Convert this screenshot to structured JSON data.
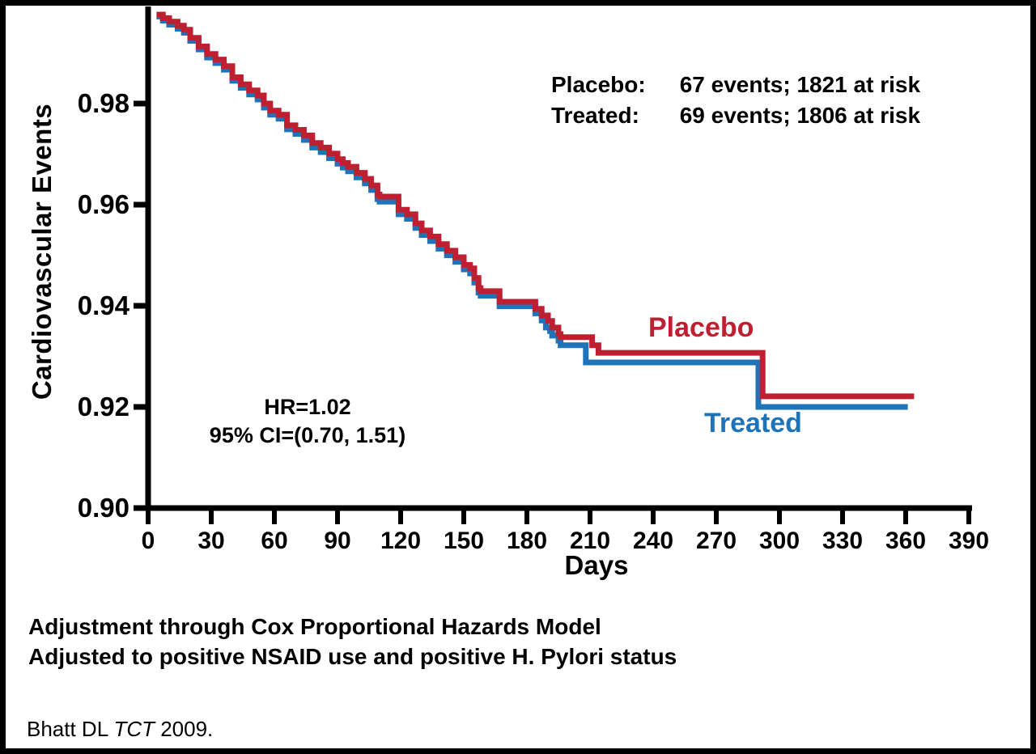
{
  "colors": {
    "placebo": "#BE2032",
    "treated": "#1E73B9",
    "axis": "#000000",
    "text": "#000000",
    "background": "#ffffff",
    "frame_border": "#000000"
  },
  "y_axis": {
    "title": "Cardiovascular Events"
  },
  "x_axis": {
    "title": "Days"
  },
  "legend": {
    "rows": [
      {
        "label": "Placebo:",
        "value": "67 events; 1821 at risk"
      },
      {
        "label": "Treated:",
        "value": "69 events; 1806 at risk"
      }
    ]
  },
  "annotation": {
    "line1": "HR=1.02",
    "line2": "95% CI=(0.70, 1.51)"
  },
  "curve_labels": {
    "placebo": "Placebo",
    "treated": "Treated"
  },
  "footer": {
    "line1": "Adjustment through Cox Proportional Hazards Model",
    "line2": "Adjusted to positive NSAID use and positive H. Pylori status"
  },
  "citation": {
    "prefix": "Bhatt DL ",
    "italic": "TCT",
    "suffix": " 2009."
  },
  "chart_data": {
    "type": "line",
    "subtype": "kaplan-meier-step",
    "title": "",
    "xlabel": "Days",
    "ylabel": "Cardiovascular Events",
    "xlim": [
      0,
      390
    ],
    "ylim": [
      0.9,
      1.0
    ],
    "x_ticks": [
      0,
      30,
      60,
      90,
      120,
      150,
      180,
      210,
      240,
      270,
      300,
      330,
      360,
      390
    ],
    "y_ticks": [
      0.98,
      0.96,
      0.94,
      0.92,
      0.9
    ],
    "grid": false,
    "legend_position": "top-right",
    "hazard_ratio": "1.02",
    "ci_95": "(0.70, 1.51)",
    "series": [
      {
        "name": "Placebo",
        "color": "#BE2032",
        "events": 67,
        "at_risk": 1821,
        "points": [
          [
            4,
            0.9976
          ],
          [
            7,
            0.9969
          ],
          [
            10,
            0.9962
          ],
          [
            14,
            0.9954
          ],
          [
            17,
            0.9946
          ],
          [
            20,
            0.993
          ],
          [
            24,
            0.9913
          ],
          [
            28,
            0.9898
          ],
          [
            32,
            0.9887
          ],
          [
            36,
            0.9874
          ],
          [
            40,
            0.9852
          ],
          [
            44,
            0.9838
          ],
          [
            48,
            0.9826
          ],
          [
            52,
            0.9816
          ],
          [
            55,
            0.98
          ],
          [
            58,
            0.9786
          ],
          [
            62,
            0.9778
          ],
          [
            66,
            0.9757
          ],
          [
            70,
            0.9748
          ],
          [
            74,
            0.9737
          ],
          [
            78,
            0.9722
          ],
          [
            82,
            0.9713
          ],
          [
            86,
            0.9701
          ],
          [
            90,
            0.969
          ],
          [
            95,
            0.9675
          ],
          [
            99,
            0.9663
          ],
          [
            103,
            0.9651
          ],
          [
            106,
            0.9638
          ],
          [
            109,
            0.962
          ],
          [
            110,
            0.9616
          ],
          [
            117,
            0.9616
          ],
          [
            119,
            0.959
          ],
          [
            123,
            0.9581
          ],
          [
            127,
            0.9563
          ],
          [
            130,
            0.9549
          ],
          [
            134,
            0.9537
          ],
          [
            138,
            0.9522
          ],
          [
            142,
            0.9509
          ],
          [
            146,
            0.9496
          ],
          [
            150,
            0.9481
          ],
          [
            153,
            0.9474
          ],
          [
            155,
            0.9455
          ],
          [
            157,
            0.9435
          ],
          [
            158,
            0.9429
          ],
          [
            166,
            0.9429
          ],
          [
            167,
            0.9408
          ],
          [
            183,
            0.9408
          ],
          [
            184,
            0.9394
          ],
          [
            186,
            0.9394
          ],
          [
            187,
            0.9381
          ],
          [
            189,
            0.9381
          ],
          [
            190,
            0.937
          ],
          [
            192,
            0.9357
          ],
          [
            194,
            0.9357
          ],
          [
            195,
            0.9344
          ],
          [
            196,
            0.9338
          ],
          [
            210,
            0.9338
          ],
          [
            211,
            0.9322
          ],
          [
            213,
            0.9322
          ],
          [
            214,
            0.9307
          ],
          [
            291,
            0.9307
          ],
          [
            292,
            0.9221
          ],
          [
            364,
            0.9221
          ]
        ]
      },
      {
        "name": "Treated",
        "color": "#1E73B9",
        "events": 69,
        "at_risk": 1806,
        "points": [
          [
            4,
            0.9972
          ],
          [
            7,
            0.9964
          ],
          [
            10,
            0.9956
          ],
          [
            14,
            0.9948
          ],
          [
            17,
            0.994
          ],
          [
            20,
            0.9924
          ],
          [
            24,
            0.9907
          ],
          [
            28,
            0.9891
          ],
          [
            32,
            0.988
          ],
          [
            36,
            0.9867
          ],
          [
            40,
            0.9845
          ],
          [
            44,
            0.9831
          ],
          [
            48,
            0.9818
          ],
          [
            52,
            0.9808
          ],
          [
            55,
            0.9792
          ],
          [
            58,
            0.9778
          ],
          [
            62,
            0.977
          ],
          [
            66,
            0.9749
          ],
          [
            70,
            0.974
          ],
          [
            74,
            0.9728
          ],
          [
            78,
            0.9713
          ],
          [
            82,
            0.9704
          ],
          [
            86,
            0.9692
          ],
          [
            90,
            0.9681
          ],
          [
            95,
            0.9666
          ],
          [
            99,
            0.9654
          ],
          [
            103,
            0.9642
          ],
          [
            106,
            0.9629
          ],
          [
            109,
            0.9611
          ],
          [
            110,
            0.9606
          ],
          [
            117,
            0.9606
          ],
          [
            119,
            0.9581
          ],
          [
            123,
            0.9572
          ],
          [
            127,
            0.9554
          ],
          [
            130,
            0.954
          ],
          [
            134,
            0.9528
          ],
          [
            138,
            0.9513
          ],
          [
            142,
            0.95
          ],
          [
            146,
            0.9487
          ],
          [
            150,
            0.9472
          ],
          [
            153,
            0.9464
          ],
          [
            155,
            0.9446
          ],
          [
            157,
            0.9426
          ],
          [
            158,
            0.942
          ],
          [
            166,
            0.942
          ],
          [
            167,
            0.9399
          ],
          [
            183,
            0.9399
          ],
          [
            184,
            0.9385
          ],
          [
            186,
            0.9385
          ],
          [
            187,
            0.9371
          ],
          [
            188,
            0.9371
          ],
          [
            189,
            0.9357
          ],
          [
            191,
            0.935
          ],
          [
            192,
            0.9341
          ],
          [
            194,
            0.9341
          ],
          [
            195,
            0.9331
          ],
          [
            196,
            0.9322
          ],
          [
            207,
            0.9322
          ],
          [
            208,
            0.9288
          ],
          [
            289,
            0.9288
          ],
          [
            290,
            0.92
          ],
          [
            361,
            0.92
          ]
        ]
      }
    ]
  }
}
